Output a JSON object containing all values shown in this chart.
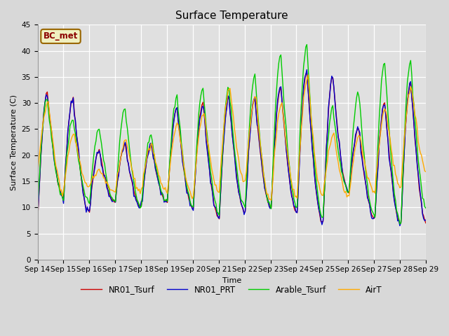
{
  "title": "Surface Temperature",
  "ylabel": "Surface Temperature (C)",
  "xlabel": "Time",
  "ylim": [
    0,
    45
  ],
  "yticks": [
    0,
    5,
    10,
    15,
    20,
    25,
    30,
    35,
    40,
    45
  ],
  "annotation": "BC_met",
  "legend_labels": [
    "NR01_Tsurf",
    "NR01_PRT",
    "Arable_Tsurf",
    "AirT"
  ],
  "line_colors": [
    "#cc0000",
    "#0000cc",
    "#00cc00",
    "#ffaa00"
  ],
  "fig_facecolor": "#d8d8d8",
  "ax_facecolor": "#e0e0e0",
  "xtick_labels": [
    "Sep 14",
    "Sep 15",
    "Sep 16",
    "Sep 17",
    "Sep 18",
    "Sep 19",
    "Sep 20",
    "Sep 21",
    "Sep 22",
    "Sep 23",
    "Sep 24",
    "Sep 25",
    "Sep 26",
    "Sep 27",
    "Sep 28",
    "Sep 29"
  ],
  "title_fontsize": 11,
  "axis_fontsize": 8,
  "tick_fontsize": 7.5
}
